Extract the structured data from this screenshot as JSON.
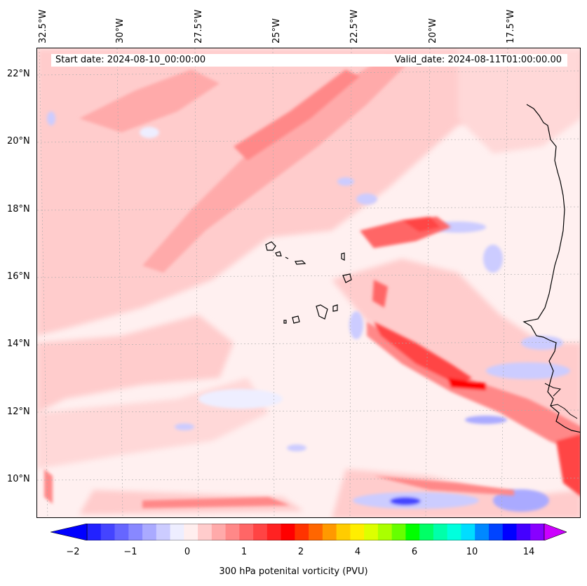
{
  "map": {
    "start_date": "Start date: 2024-08-10_00:00:00",
    "valid_date": "Valid_date: 2024-08-11T01:00:00.00",
    "longitude_labels": [
      "32.5°W",
      "30°W",
      "27.5°W",
      "25°W",
      "22.5°W",
      "20°W",
      "17.5°W"
    ],
    "latitude_labels": [
      "22°N",
      "20°N",
      "18°N",
      "16°N",
      "14°N",
      "12°N",
      "10°N"
    ],
    "extent": {
      "lon_min": -32.7,
      "lon_max": -15.5,
      "lat_min": 8.9,
      "lat_max": 22.8
    }
  },
  "colorbar": {
    "label": "300 hPa potenital vorticity (PVU)",
    "tick_labels": [
      "−2",
      "−1",
      "0",
      "1",
      "2",
      "4",
      "6",
      "10",
      "14"
    ],
    "colors": [
      "#0000ff",
      "#2222ff",
      "#4444ff",
      "#6666ff",
      "#8888ff",
      "#aaaaff",
      "#ccccff",
      "#eeeeff",
      "#ffeeee",
      "#ffcccc",
      "#ffaaaa",
      "#ff8888",
      "#ff6666",
      "#ff4444",
      "#ff2222",
      "#ff0000",
      "#ff3300",
      "#ff6600",
      "#ff9900",
      "#ffcc00",
      "#ffee00",
      "#ddff00",
      "#aaff00",
      "#66ff00",
      "#00ff00",
      "#00ff66",
      "#00ffaa",
      "#00ffdd",
      "#00ddff",
      "#0088ff",
      "#0044ff",
      "#0000ff",
      "#4400ff",
      "#8800ff",
      "#cc00ff"
    ]
  }
}
